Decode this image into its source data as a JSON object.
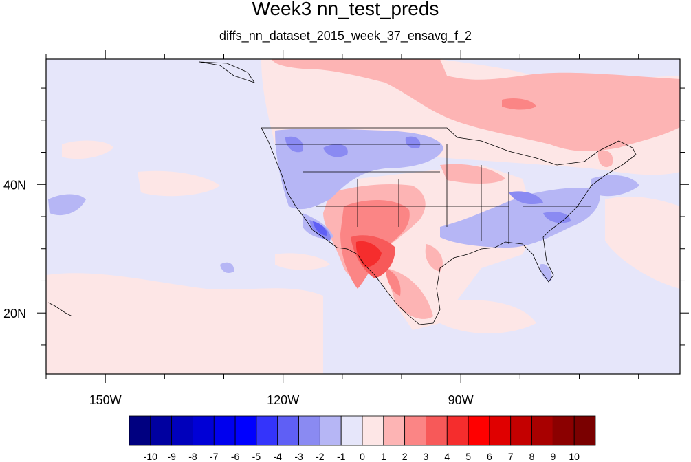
{
  "title": "Week3 nn_test_preds",
  "subtitle": "diffs_nn_dataset_2015_week_37_ensavg_f_2",
  "map": {
    "lon_range": [
      -160,
      -53
    ],
    "lat_range": [
      10.5,
      59.5
    ],
    "lon_ticks": [
      {
        "value": -150,
        "label": "150W"
      },
      {
        "value": -120,
        "label": "120W"
      },
      {
        "value": -90,
        "label": "90W"
      }
    ],
    "lat_ticks": [
      {
        "value": 40,
        "label": "40N"
      },
      {
        "value": 20,
        "label": "20N"
      }
    ],
    "field_description_values": {
      "background": -0.5,
      "canada_north": 1.5,
      "desert_southwest": 6.5
    }
  },
  "colorbar": {
    "labels": [
      "-10",
      "-9",
      "-8",
      "-7",
      "-6",
      "-5",
      "-4",
      "-3",
      "-2",
      "-1",
      "0",
      "1",
      "2",
      "3",
      "4",
      "5",
      "6",
      "7",
      "8",
      "9",
      "10"
    ],
    "colors": [
      "#000080",
      "#0000a0",
      "#0000bb",
      "#0000d6",
      "#0000ee",
      "#0000ff",
      "#3434fb",
      "#5f5ff5",
      "#8a8af2",
      "#b6b6f5",
      "#e6e6fa",
      "#fde6e6",
      "#fdb4b4",
      "#fb8585",
      "#f75959",
      "#f52d2d",
      "#ff0000",
      "#e00000",
      "#c40000",
      "#a80000",
      "#8b0000",
      "#7a0000"
    ]
  }
}
